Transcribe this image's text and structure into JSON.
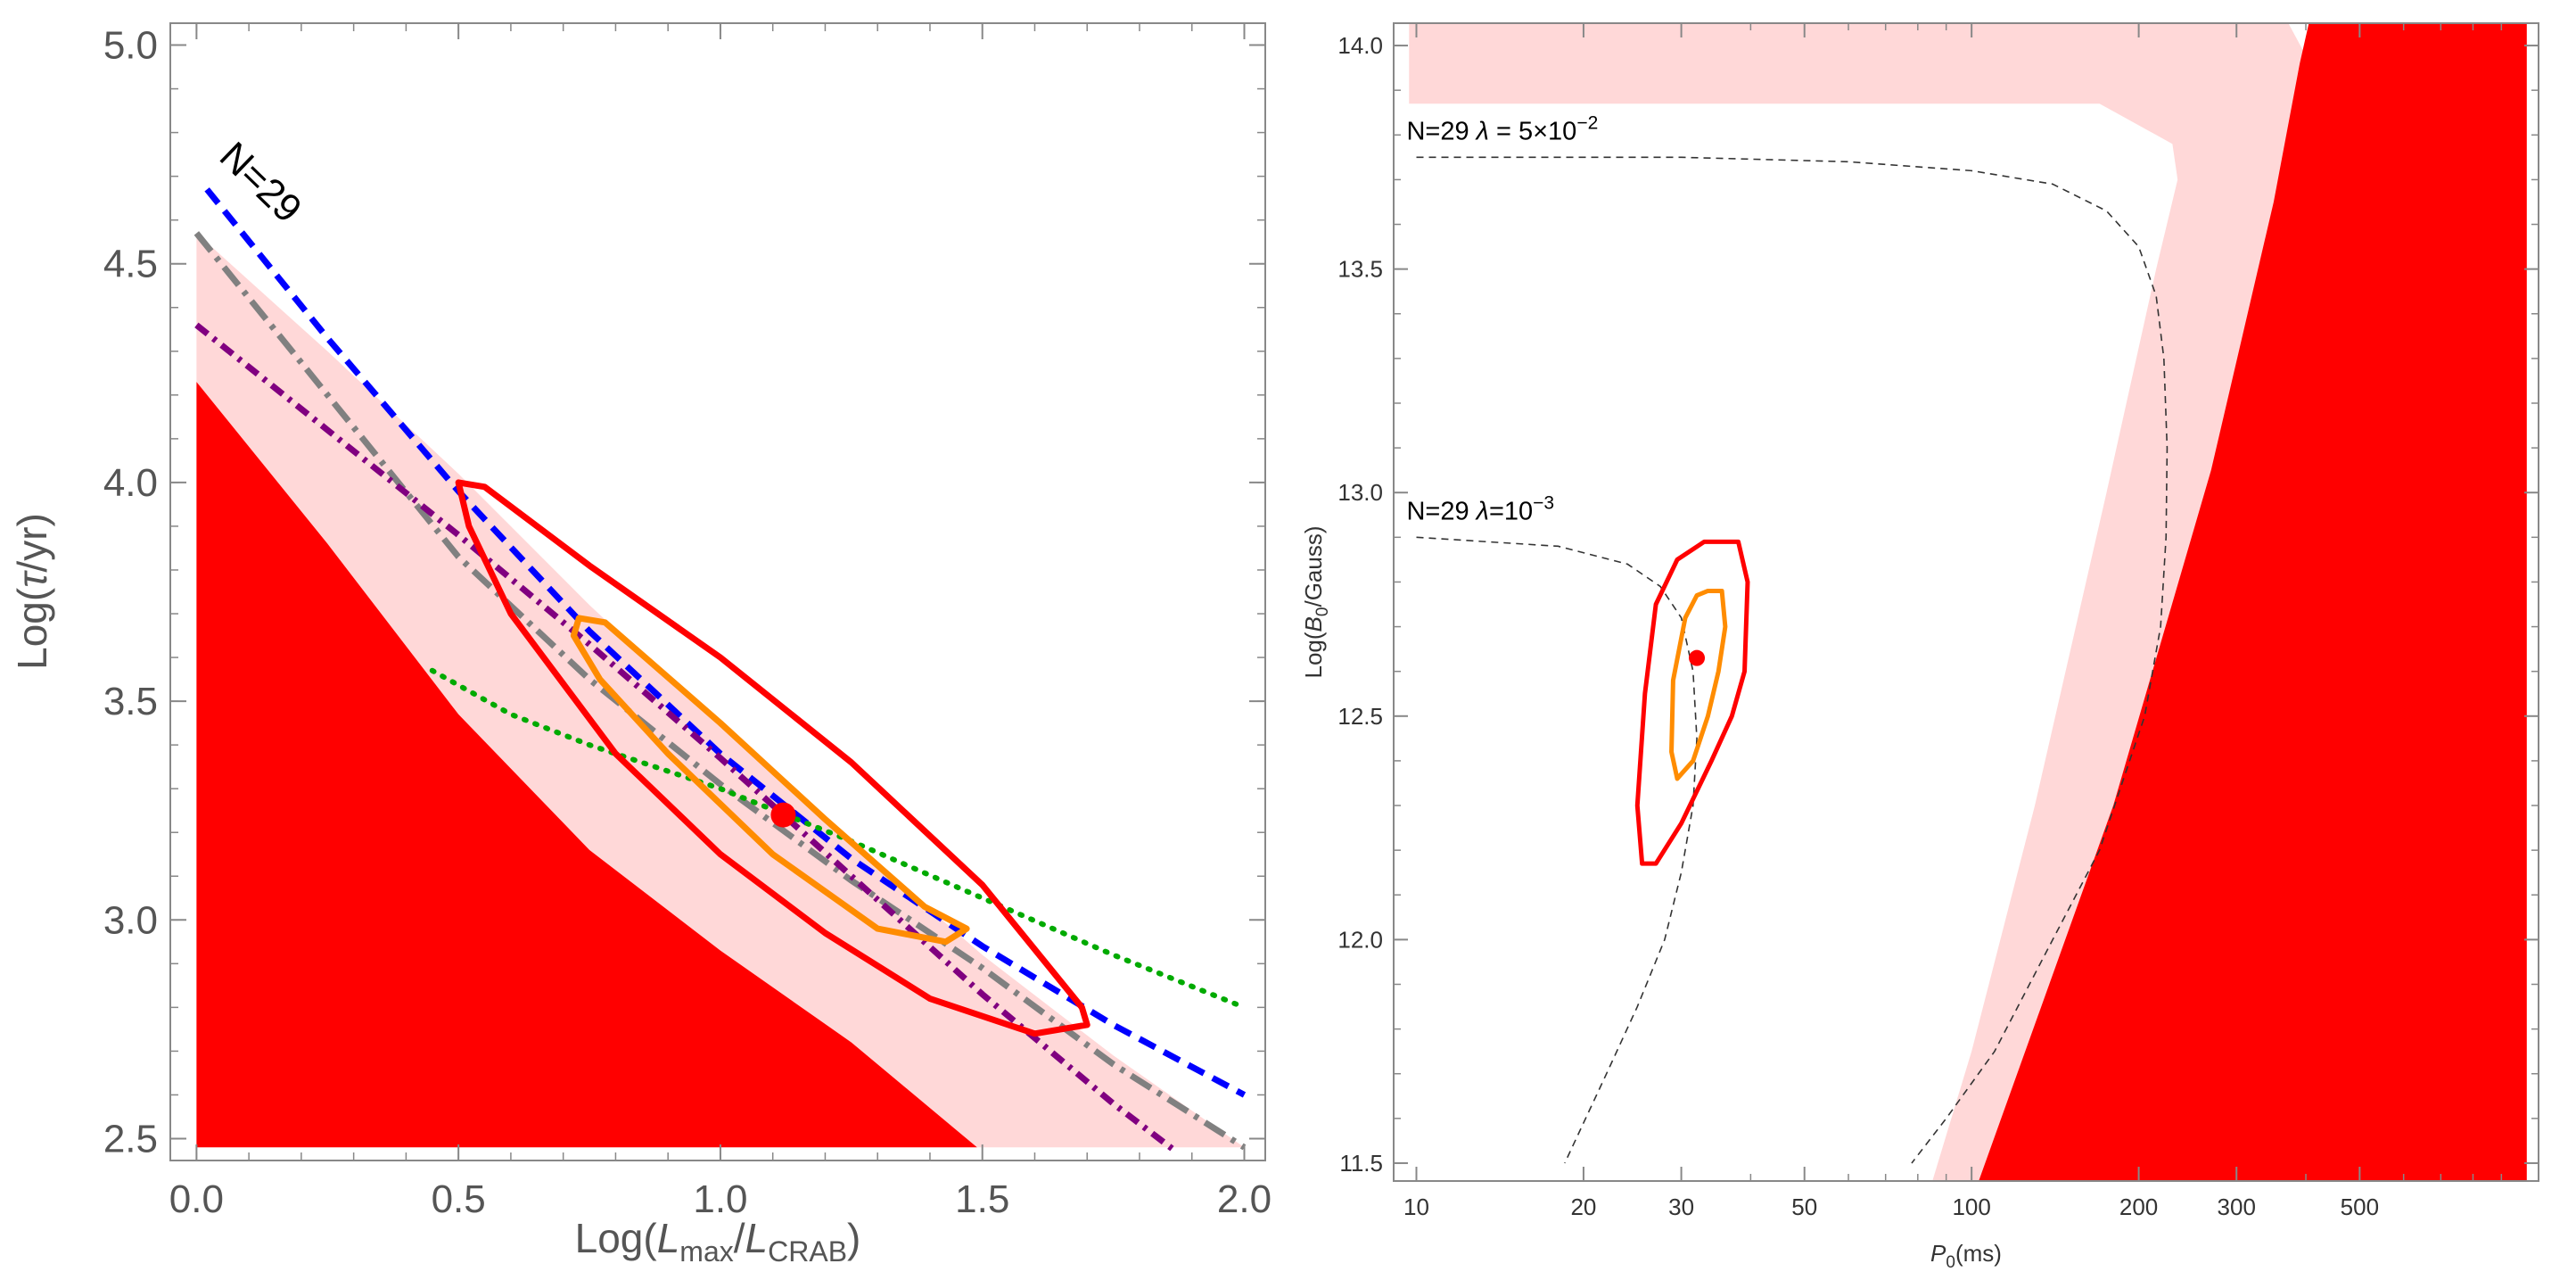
{
  "chart_data": [
    {
      "type": "line",
      "panel": "left",
      "xlabel_parts": {
        "prefix": "Log(",
        "L1": "L",
        "sub1": "max",
        "slash": "/",
        "L2": "L",
        "sub2": "CRAB",
        "suffix": ")"
      },
      "ylabel_parts": {
        "prefix": "Log(",
        "tau": "τ",
        "suffix": "/yr)"
      },
      "xlim": [
        -0.05,
        2.04
      ],
      "ylim": [
        2.45,
        5.05
      ],
      "xticks": [
        0.0,
        0.5,
        1.0,
        1.5,
        2.0
      ],
      "xtick_labels": [
        "0.0",
        "0.5",
        "1.0",
        "1.5",
        "2.0"
      ],
      "yticks": [
        2.5,
        3.0,
        3.5,
        4.0,
        4.5,
        5.0
      ],
      "ytick_labels": [
        "2.5",
        "3.0",
        "3.5",
        "4.0",
        "4.5",
        "5.0"
      ],
      "annotation": {
        "text": "N=29",
        "x": 0.04,
        "y": 4.74,
        "angle": 44
      },
      "regions": [
        {
          "name": "pink-allowed-band",
          "color": "#ffd8d8",
          "upper": [
            [
              0.0,
              4.57
            ],
            [
              0.25,
              4.3
            ],
            [
              0.5,
              4.02
            ],
            [
              0.75,
              3.72
            ],
            [
              1.0,
              3.44
            ],
            [
              1.25,
              3.18
            ],
            [
              1.5,
              2.92
            ],
            [
              1.75,
              2.69
            ],
            [
              2.0,
              2.48
            ]
          ],
          "lower": [
            [
              0.0,
              4.23
            ],
            [
              0.25,
              3.86
            ],
            [
              0.5,
              3.47
            ],
            [
              0.75,
              3.16
            ],
            [
              1.0,
              2.93
            ],
            [
              1.25,
              2.72
            ],
            [
              1.49,
              2.48
            ]
          ],
          "floor": 2.48
        },
        {
          "name": "red-excluded-region",
          "color": "#ff0000",
          "upper": [
            [
              0.0,
              4.23
            ],
            [
              0.25,
              3.86
            ],
            [
              0.5,
              3.47
            ],
            [
              0.75,
              3.16
            ],
            [
              1.0,
              2.93
            ],
            [
              1.25,
              2.72
            ],
            [
              1.49,
              2.48
            ]
          ],
          "floor": 2.48
        }
      ],
      "series": [
        {
          "name": "blue-dashed",
          "color": "#0000ff",
          "style": "dashed",
          "x": [
            0.02,
            0.25,
            0.5,
            0.75,
            1.0,
            1.25,
            1.5,
            1.75,
            2.0
          ],
          "y": [
            4.67,
            4.33,
            3.98,
            3.66,
            3.38,
            3.14,
            2.94,
            2.76,
            2.6
          ]
        },
        {
          "name": "gray-dash-dot",
          "color": "#808080",
          "style": "dashdot",
          "x": [
            0.0,
            0.25,
            0.5,
            0.75,
            1.0,
            1.25,
            1.5,
            1.75,
            2.0
          ],
          "y": [
            4.57,
            4.2,
            3.83,
            3.55,
            3.31,
            3.09,
            2.89,
            2.67,
            2.48
          ]
        },
        {
          "name": "purple-dash-dot",
          "color": "#800080",
          "style": "dashdotfine",
          "x": [
            0.0,
            0.25,
            0.5,
            0.75,
            1.0,
            1.25,
            1.5,
            1.75,
            1.87
          ],
          "y": [
            4.36,
            4.12,
            3.88,
            3.63,
            3.37,
            3.1,
            2.83,
            2.58,
            2.47
          ]
        },
        {
          "name": "green-dotted",
          "color": "#00aa00",
          "style": "dotted",
          "x": [
            0.45,
            0.6,
            0.75,
            1.0,
            1.25,
            1.5,
            1.75,
            2.0
          ],
          "y": [
            3.57,
            3.47,
            3.4,
            3.3,
            3.18,
            3.05,
            2.92,
            2.8
          ]
        }
      ],
      "contours": [
        {
          "name": "red-contour",
          "color": "#ff0000",
          "points": [
            [
              0.5,
              4.0
            ],
            [
              0.55,
              3.99
            ],
            [
              0.75,
              3.81
            ],
            [
              1.0,
              3.6
            ],
            [
              1.25,
              3.36
            ],
            [
              1.5,
              3.08
            ],
            [
              1.69,
              2.8
            ],
            [
              1.7,
              2.76
            ],
            [
              1.6,
              2.74
            ],
            [
              1.4,
              2.82
            ],
            [
              1.2,
              2.97
            ],
            [
              1.0,
              3.15
            ],
            [
              0.8,
              3.38
            ],
            [
              0.6,
              3.7
            ],
            [
              0.52,
              3.9
            ]
          ]
        },
        {
          "name": "orange-contour",
          "color": "#ff8c00",
          "points": [
            [
              0.73,
              3.69
            ],
            [
              0.78,
              3.68
            ],
            [
              1.0,
              3.45
            ],
            [
              1.2,
              3.23
            ],
            [
              1.39,
              3.03
            ],
            [
              1.47,
              2.98
            ],
            [
              1.43,
              2.95
            ],
            [
              1.3,
              2.98
            ],
            [
              1.1,
              3.15
            ],
            [
              0.9,
              3.38
            ],
            [
              0.77,
              3.55
            ],
            [
              0.72,
              3.65
            ]
          ]
        }
      ],
      "points": [
        {
          "name": "best-fit-point",
          "x": 1.12,
          "y": 3.24,
          "color": "#ff0000"
        }
      ]
    },
    {
      "type": "line",
      "panel": "right",
      "xscale": "log",
      "xlabel_parts": {
        "P": "P",
        "sub": "0",
        "suffix": "(ms)"
      },
      "ylabel_parts": {
        "prefix": "Log(",
        "B": "B",
        "sub": "0",
        "suffix": "/Gauss)"
      },
      "xlim": [
        9.1,
        1050
      ],
      "ylim": [
        11.46,
        14.05
      ],
      "xticks": [
        10,
        20,
        30,
        50,
        100,
        200,
        300,
        500
      ],
      "xtick_labels": [
        "10",
        "20",
        "30",
        "50",
        "100",
        "200",
        "300",
        "500"
      ],
      "yticks": [
        11.5,
        12.0,
        12.5,
        13.0,
        13.5,
        14.0
      ],
      "ytick_labels": [
        "11.5",
        "12.0",
        "12.5",
        "13.0",
        "13.5",
        "14.0"
      ],
      "annotations": [
        {
          "parts": {
            "n": "N=29 ",
            "lambda": "λ",
            "eq": " = 5×10",
            "exp": "−2"
          },
          "x": 9.6,
          "y": 13.79
        },
        {
          "parts": {
            "n": "N=29 ",
            "lambda": "λ",
            "eq": "=10",
            "exp": "−3"
          },
          "x": 9.6,
          "y": 12.94
        }
      ],
      "regions": [
        {
          "name": "pink-band",
          "color": "#ffd8d8",
          "points": [
            [
              9.7,
              14.05
            ],
            [
              372,
              14.05
            ],
            [
              395,
              13.99
            ],
            [
              400,
              13.87
            ],
            [
              395,
              13.75
            ],
            [
              380,
              13.6
            ],
            [
              340,
              13.2
            ],
            [
              290,
              12.6
            ],
            [
              230,
              12.0
            ],
            [
              175,
              11.46
            ],
            [
              85,
              11.46
            ],
            [
              100,
              11.75
            ],
            [
              130,
              12.3
            ],
            [
              175,
              13.0
            ],
            [
              215,
              13.5
            ],
            [
              235,
              13.7
            ],
            [
              230,
              13.78
            ],
            [
              170,
              13.87
            ],
            [
              9.7,
              13.87
            ]
          ]
        },
        {
          "name": "red-region",
          "color": "#ff0000",
          "points": [
            [
              405,
              14.05
            ],
            [
              1000,
              14.05
            ],
            [
              1000,
              11.46
            ],
            [
              103,
              11.46
            ],
            [
              180,
              12.3
            ],
            [
              270,
              13.05
            ],
            [
              350,
              13.65
            ],
            [
              390,
              13.96
            ]
          ]
        }
      ],
      "series": [
        {
          "name": "upper-dashed-curve",
          "color": "#333333",
          "style": "thin-dashed",
          "x": [
            10,
            30,
            60,
            100,
            140,
            175,
            200,
            215,
            222,
            225,
            224,
            219,
            205,
            170,
            140,
            110,
            90,
            78
          ],
          "y": [
            13.75,
            13.75,
            13.74,
            13.72,
            13.69,
            13.63,
            13.55,
            13.44,
            13.3,
            13.1,
            12.9,
            12.7,
            12.5,
            12.2,
            12.0,
            11.75,
            11.6,
            11.5
          ]
        },
        {
          "name": "lower-dashed-curve",
          "color": "#333333",
          "style": "thin-dashed",
          "x": [
            10,
            18,
            24,
            27.5,
            30,
            31.5,
            32,
            31.5,
            30,
            28,
            25,
            22,
            18.5
          ],
          "y": [
            12.9,
            12.88,
            12.84,
            12.79,
            12.72,
            12.6,
            12.45,
            12.3,
            12.15,
            12.0,
            11.85,
            11.7,
            11.5
          ]
        }
      ],
      "contours": [
        {
          "name": "red-contour",
          "color": "#ff0000",
          "points": [
            [
              33,
              12.89
            ],
            [
              38,
              12.89
            ],
            [
              39.5,
              12.8
            ],
            [
              39,
              12.6
            ],
            [
              37,
              12.5
            ],
            [
              34,
              12.4
            ],
            [
              30,
              12.26
            ],
            [
              27,
              12.17
            ],
            [
              25.5,
              12.17
            ],
            [
              25,
              12.3
            ],
            [
              25.8,
              12.55
            ],
            [
              27,
              12.75
            ],
            [
              29.5,
              12.85
            ]
          ]
        },
        {
          "name": "orange-contour",
          "color": "#ff8c00",
          "points": [
            [
              33.5,
              12.78
            ],
            [
              35.5,
              12.78
            ],
            [
              36,
              12.7
            ],
            [
              35,
              12.6
            ],
            [
              33.5,
              12.5
            ],
            [
              31.5,
              12.4
            ],
            [
              29.5,
              12.36
            ],
            [
              28.8,
              12.42
            ],
            [
              29,
              12.58
            ],
            [
              30.5,
              12.72
            ],
            [
              32,
              12.77
            ]
          ]
        }
      ],
      "points": [
        {
          "name": "best-fit-point",
          "x": 32,
          "y": 12.63,
          "color": "#ff0000"
        }
      ]
    }
  ]
}
